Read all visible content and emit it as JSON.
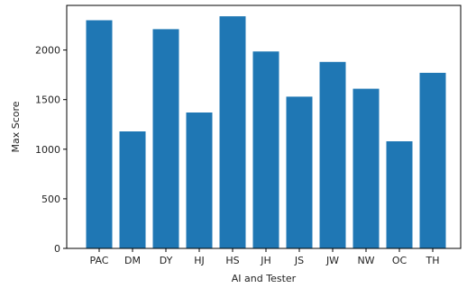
{
  "chart_data": {
    "type": "bar",
    "categories": [
      "PAC",
      "DM",
      "DY",
      "HJ",
      "HS",
      "JH",
      "JS",
      "JW",
      "NW",
      "OC",
      "TH"
    ],
    "values": [
      2300,
      1180,
      2210,
      1370,
      2340,
      1985,
      1530,
      1880,
      1610,
      1080,
      1770
    ],
    "title": "",
    "xlabel": "AI and Tester",
    "ylabel": "Max Score",
    "ylim": [
      0,
      2450
    ],
    "yticks": [
      0,
      500,
      1000,
      1500,
      2000
    ],
    "bar_color": "#1f77b4",
    "grid": false,
    "legend": "none"
  }
}
